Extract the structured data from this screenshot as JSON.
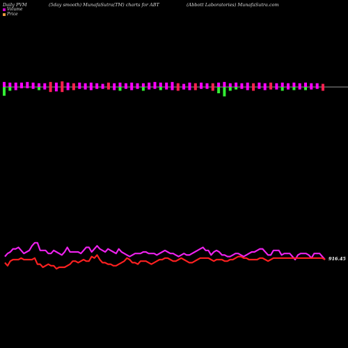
{
  "header": {
    "left": "Daily PVM",
    "middle": "(5day smooth) MunafaSutra(TM) charts for ABT",
    "right": "(Abbott Laboratories) MunafaSutra.com"
  },
  "legend": {
    "items": [
      {
        "label": "Volume",
        "color": "#cc00cc"
      },
      {
        "label": "Price",
        "color": "#e89a3c"
      }
    ]
  },
  "price_label": "916.45",
  "chart_data": {
    "type": "bar+line",
    "volume": {
      "baseline_value": 0,
      "colors": {
        "up": "#ff00ff",
        "up_heavy": "#ff2050",
        "down": "#33ee33"
      },
      "values": [
        {
          "up": 8,
          "down": 14,
          "color": "down"
        },
        {
          "up": 7,
          "down": 6,
          "color": "down"
        },
        {
          "up": 7,
          "down": 5,
          "color": "up"
        },
        {
          "up": 7,
          "down": 2,
          "color": "up"
        },
        {
          "up": 8,
          "down": 2,
          "color": "up"
        },
        {
          "up": 7,
          "down": 3,
          "color": "up"
        },
        {
          "up": 6,
          "down": 5,
          "color": "down"
        },
        {
          "up": 6,
          "down": 4,
          "color": "up"
        },
        {
          "up": 8,
          "down": 8,
          "color": "up_heavy"
        },
        {
          "up": 7,
          "down": 7,
          "color": "up"
        },
        {
          "up": 9,
          "down": 8,
          "color": "up_heavy"
        },
        {
          "up": 7,
          "down": 5,
          "color": "up"
        },
        {
          "up": 6,
          "down": 5,
          "color": "up_heavy"
        },
        {
          "up": 7,
          "down": 3,
          "color": "up"
        },
        {
          "up": 6,
          "down": 4,
          "color": "up"
        },
        {
          "up": 7,
          "down": 5,
          "color": "up"
        },
        {
          "up": 6,
          "down": 3,
          "color": "up"
        },
        {
          "up": 5,
          "down": 3,
          "color": "up"
        },
        {
          "up": 7,
          "down": 4,
          "color": "up_heavy"
        },
        {
          "up": 6,
          "down": 5,
          "color": "up"
        },
        {
          "up": 7,
          "down": 6,
          "color": "down"
        },
        {
          "up": 6,
          "down": 3,
          "color": "up"
        },
        {
          "up": 7,
          "down": 5,
          "color": "up"
        },
        {
          "up": 6,
          "down": 3,
          "color": "up"
        },
        {
          "up": 6,
          "down": 6,
          "color": "down"
        },
        {
          "up": 7,
          "down": 4,
          "color": "up"
        },
        {
          "up": 8,
          "down": 3,
          "color": "up"
        },
        {
          "up": 7,
          "down": 5,
          "color": "down"
        },
        {
          "up": 7,
          "down": 4,
          "color": "up"
        },
        {
          "up": 8,
          "down": 5,
          "color": "up"
        },
        {
          "up": 6,
          "down": 6,
          "color": "up_heavy"
        },
        {
          "up": 5,
          "down": 4,
          "color": "up"
        },
        {
          "up": 7,
          "down": 5,
          "color": "up"
        },
        {
          "up": 6,
          "down": 5,
          "color": "up_heavy"
        },
        {
          "up": 7,
          "down": 3,
          "color": "up"
        },
        {
          "up": 6,
          "down": 3,
          "color": "up"
        },
        {
          "up": 6,
          "down": 6,
          "color": "up_heavy"
        },
        {
          "up": 7,
          "down": 10,
          "color": "down"
        },
        {
          "up": 8,
          "down": 15,
          "color": "down"
        },
        {
          "up": 6,
          "down": 6,
          "color": "down"
        },
        {
          "up": 7,
          "down": 4,
          "color": "down"
        },
        {
          "up": 6,
          "down": 3,
          "color": "up"
        },
        {
          "up": 7,
          "down": 5,
          "color": "up"
        },
        {
          "up": 6,
          "down": 6,
          "color": "up_heavy"
        },
        {
          "up": 7,
          "down": 3,
          "color": "up"
        },
        {
          "up": 6,
          "down": 5,
          "color": "up"
        },
        {
          "up": 7,
          "down": 4,
          "color": "up_heavy"
        },
        {
          "up": 6,
          "down": 4,
          "color": "up"
        },
        {
          "up": 7,
          "down": 6,
          "color": "down"
        },
        {
          "up": 6,
          "down": 4,
          "color": "up"
        },
        {
          "up": 7,
          "down": 5,
          "color": "down"
        },
        {
          "up": 6,
          "down": 4,
          "color": "up"
        },
        {
          "up": 7,
          "down": 5,
          "color": "down"
        },
        {
          "up": 6,
          "down": 4,
          "color": "up"
        },
        {
          "up": 6,
          "down": 3,
          "color": "up"
        },
        {
          "up": 5,
          "down": 6,
          "color": "up_heavy"
        }
      ]
    },
    "series": [
      {
        "color": "#ee22ee",
        "values": [
          62,
          64,
          65,
          67,
          67,
          68,
          66,
          64,
          65,
          66,
          69,
          71,
          71,
          66,
          66,
          66,
          64,
          64,
          66,
          65,
          64,
          63,
          65,
          68,
          65,
          65,
          65,
          65,
          64,
          66,
          68,
          68,
          65,
          67,
          69,
          67,
          66,
          65,
          67,
          66,
          65,
          64,
          67,
          65,
          64,
          63,
          62,
          63,
          64,
          64,
          64,
          65,
          65,
          64,
          64,
          64,
          63,
          64,
          65,
          66,
          65,
          64,
          64,
          63,
          62,
          63,
          64,
          63,
          63,
          64,
          65,
          66,
          67,
          68,
          66,
          66,
          63,
          65,
          66,
          65,
          63,
          63,
          62,
          62,
          63,
          64,
          64,
          63,
          62,
          63,
          64,
          65,
          65,
          66,
          67,
          67,
          65,
          63,
          63,
          66,
          66,
          66,
          63,
          64,
          64,
          64,
          62,
          60,
          63,
          64,
          64,
          64,
          63,
          61,
          64,
          64,
          64,
          62,
          60
        ]
      },
      {
        "color": "#ff2020",
        "values": [
          58,
          56,
          59,
          60,
          60,
          60,
          61,
          60,
          60,
          60,
          60,
          61,
          57,
          57,
          55,
          56,
          57,
          56,
          56,
          54,
          55,
          55,
          55,
          56,
          57,
          59,
          59,
          58,
          59,
          60,
          59,
          59,
          62,
          61,
          63,
          60,
          58,
          58,
          57,
          57,
          56,
          56,
          57,
          58,
          59,
          61,
          60,
          58,
          58,
          57,
          59,
          59,
          59,
          58,
          57,
          58,
          59,
          60,
          60,
          61,
          61,
          60,
          59,
          59,
          60,
          61,
          60,
          59,
          58,
          58,
          59,
          60,
          61,
          61,
          61,
          61,
          60,
          59,
          60,
          60,
          60,
          59,
          59,
          60,
          60,
          61,
          62,
          62,
          61,
          61,
          60,
          60,
          60,
          60,
          61,
          61,
          60,
          59,
          60,
          61,
          61,
          61,
          61,
          61,
          61,
          61,
          61,
          61,
          61,
          61,
          61,
          61,
          61,
          61,
          61,
          61,
          61,
          61,
          60
        ]
      }
    ]
  }
}
